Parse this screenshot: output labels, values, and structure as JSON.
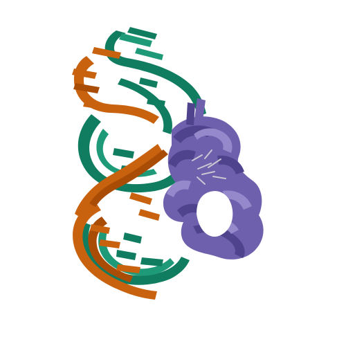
{
  "image": {
    "background": "#ffffff",
    "colors": {
      "dna_strand_a": "#117d60",
      "dna_strand_a_light": "#1f9a78",
      "dna_strand_b": "#c8620f",
      "dna_strand_b_dark": "#a94c05",
      "protein": "#6f60ad",
      "protein_dark": "#4f438d",
      "protein_light": "#9588cb",
      "sidechain": "#c9c8d2"
    }
  }
}
